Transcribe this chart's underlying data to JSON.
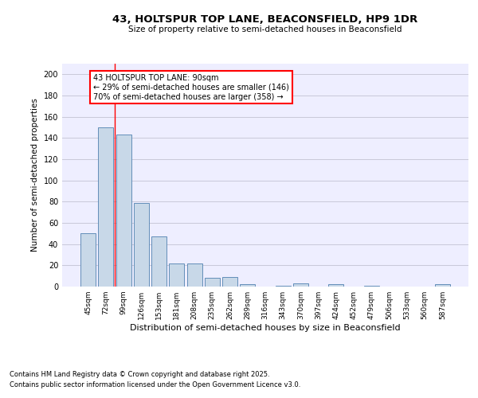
{
  "title1": "43, HOLTSPUR TOP LANE, BEACONSFIELD, HP9 1DR",
  "title2": "Size of property relative to semi-detached houses in Beaconsfield",
  "xlabel": "Distribution of semi-detached houses by size in Beaconsfield",
  "ylabel": "Number of semi-detached properties",
  "categories": [
    "45sqm",
    "72sqm",
    "99sqm",
    "126sqm",
    "153sqm",
    "181sqm",
    "208sqm",
    "235sqm",
    "262sqm",
    "289sqm",
    "316sqm",
    "343sqm",
    "370sqm",
    "397sqm",
    "424sqm",
    "452sqm",
    "479sqm",
    "506sqm",
    "533sqm",
    "560sqm",
    "587sqm"
  ],
  "values": [
    50,
    150,
    143,
    79,
    47,
    22,
    22,
    8,
    9,
    2,
    0,
    1,
    3,
    0,
    2,
    0,
    1,
    0,
    0,
    0,
    2
  ],
  "bar_color": "#c8d8e8",
  "bar_edge_color": "#5080b0",
  "vline_x": 1.5,
  "vline_color": "red",
  "annotation_text": "43 HOLTSPUR TOP LANE: 90sqm\n← 29% of semi-detached houses are smaller (146)\n70% of semi-detached houses are larger (358) →",
  "annotation_box_color": "white",
  "annotation_box_edge": "red",
  "footnote1": "Contains HM Land Registry data © Crown copyright and database right 2025.",
  "footnote2": "Contains public sector information licensed under the Open Government Licence v3.0.",
  "ylim": [
    0,
    210
  ],
  "yticks": [
    0,
    20,
    40,
    60,
    80,
    100,
    120,
    140,
    160,
    180,
    200
  ],
  "grid_color": "#c8c8d8",
  "bg_color": "#eeeeff"
}
